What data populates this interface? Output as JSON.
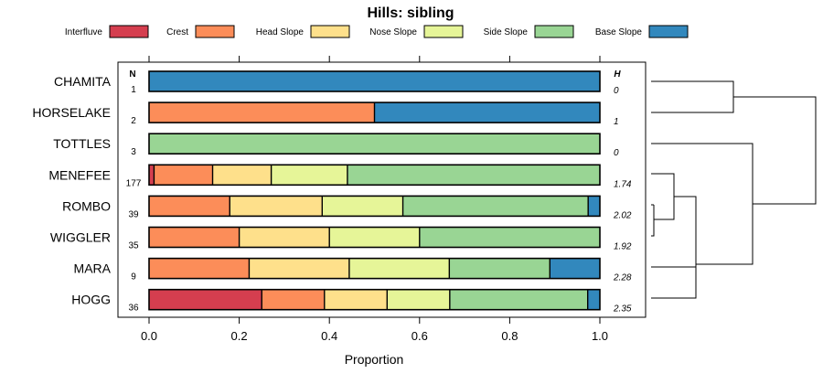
{
  "chart_data": {
    "type": "bar",
    "orientation": "horizontal",
    "stacked": true,
    "title": "Hills: sibling",
    "xlabel": "Proportion",
    "ylabel": "",
    "xlim": [
      0,
      1
    ],
    "x_ticks": [
      "0.0",
      "0.2",
      "0.4",
      "0.6",
      "0.8",
      "1.0"
    ],
    "x_tick_values": [
      0,
      0.2,
      0.4,
      0.6,
      0.8,
      1.0
    ],
    "n_header": "N",
    "h_header": "H",
    "legend": [
      {
        "name": "Interfluve",
        "color": "#d53e4f"
      },
      {
        "name": "Crest",
        "color": "#fc8d59"
      },
      {
        "name": "Head Slope",
        "color": "#fee08b"
      },
      {
        "name": "Nose Slope",
        "color": "#e6f598"
      },
      {
        "name": "Side Slope",
        "color": "#99d594"
      },
      {
        "name": "Base Slope",
        "color": "#3288bd"
      }
    ],
    "categories": [
      "CHAMITA",
      "HORSELAKE",
      "TOTTLES",
      "MENEFEE",
      "ROMBO",
      "WIGGLER",
      "MARA",
      "HOGG"
    ],
    "n": [
      "1",
      "2",
      "3",
      "177",
      "39",
      "35",
      "9",
      "36"
    ],
    "h": [
      "0",
      "1",
      "0",
      "1.74",
      "2.02",
      "1.92",
      "2.28",
      "2.35"
    ],
    "series": [
      {
        "name": "Interfluve",
        "values": [
          0,
          0,
          0,
          0.011,
          0,
          0,
          0,
          0.25
        ]
      },
      {
        "name": "Crest",
        "values": [
          0,
          0.5,
          0,
          0.13,
          0.179,
          0.2,
          0.222,
          0.139
        ]
      },
      {
        "name": "Head Slope",
        "values": [
          0,
          0,
          0,
          0.13,
          0.205,
          0.2,
          0.222,
          0.139
        ]
      },
      {
        "name": "Nose Slope",
        "values": [
          0,
          0,
          0,
          0.169,
          0.179,
          0.2,
          0.222,
          0.139
        ]
      },
      {
        "name": "Side Slope",
        "values": [
          0,
          0,
          1,
          0.56,
          0.411,
          0.4,
          0.223,
          0.306
        ]
      },
      {
        "name": "Base Slope",
        "values": [
          1,
          0.5,
          0,
          0,
          0.026,
          0,
          0.111,
          0.027
        ]
      }
    ],
    "dendrogram": "hierarchical clustering of soils (right side)"
  }
}
